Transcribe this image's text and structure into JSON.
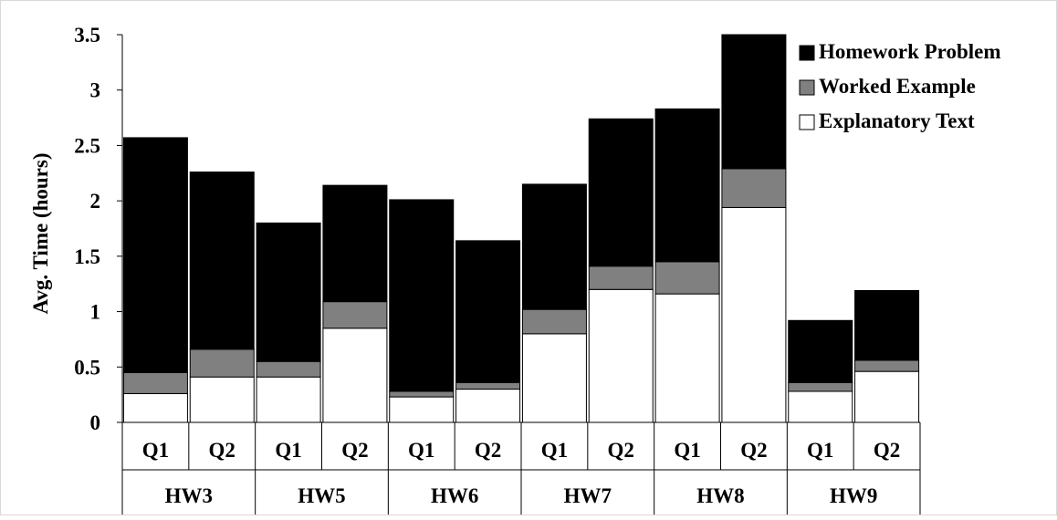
{
  "chart_data": {
    "type": "bar",
    "stacked": true,
    "ylabel": "Avg. Time (hours)",
    "ylim": [
      0,
      3.5
    ],
    "yticks": [
      0,
      0.5,
      1,
      1.5,
      2,
      2.5,
      3,
      3.5
    ],
    "ytick_labels": [
      "0",
      "0.5",
      "1",
      "1.5",
      "2",
      "2.5",
      "3",
      "3.5"
    ],
    "groups": [
      {
        "label": "HW3",
        "categories": [
          "Q1",
          "Q2"
        ]
      },
      {
        "label": "HW5",
        "categories": [
          "Q1",
          "Q2"
        ]
      },
      {
        "label": "HW6",
        "categories": [
          "Q1",
          "Q2"
        ]
      },
      {
        "label": "HW7",
        "categories": [
          "Q1",
          "Q2"
        ]
      },
      {
        "label": "HW8",
        "categories": [
          "Q1",
          "Q2"
        ]
      },
      {
        "label": "HW9",
        "categories": [
          "Q1",
          "Q2"
        ]
      }
    ],
    "series": [
      {
        "name": "Explanatory Text",
        "color": "#ffffff",
        "values": [
          0.26,
          0.41,
          0.41,
          0.85,
          0.23,
          0.3,
          0.8,
          1.2,
          1.16,
          1.94,
          0.28,
          0.46
        ]
      },
      {
        "name": "Worked Example",
        "color": "#808080",
        "values": [
          0.19,
          0.25,
          0.14,
          0.24,
          0.05,
          0.06,
          0.22,
          0.21,
          0.29,
          0.35,
          0.08,
          0.1
        ]
      },
      {
        "name": "Homework Problem",
        "color": "#000000",
        "values": [
          2.12,
          1.6,
          1.25,
          1.05,
          1.73,
          1.28,
          1.13,
          1.33,
          1.38,
          1.21,
          0.56,
          0.63
        ]
      }
    ],
    "legend": {
      "position": "top-right",
      "order": [
        "Homework Problem",
        "Worked Example",
        "Explanatory Text"
      ]
    },
    "grid": false
  }
}
